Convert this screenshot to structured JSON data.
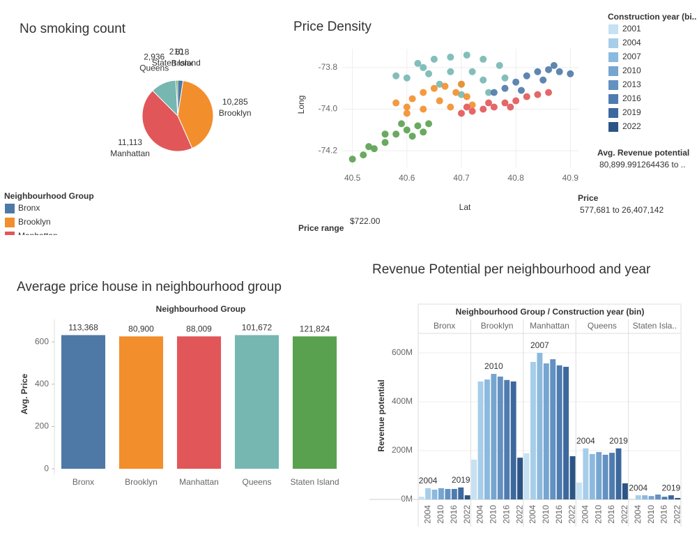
{
  "chart_data": [
    {
      "type": "pie",
      "title": "No smoking count",
      "categories": [
        "Bronx",
        "Brooklyn",
        "Manhattan",
        "Queens",
        "Staten Island"
      ],
      "values": [
        618,
        10285,
        11113,
        2936,
        210
      ],
      "value_labels": [
        "618",
        "10,285",
        "11,113",
        "2,936",
        "210"
      ],
      "colors": [
        "#4e79a7",
        "#f28e2b",
        "#e15759",
        "#76b7b2",
        "#59a14f"
      ],
      "legend_title": "Neighbourhood Group"
    },
    {
      "type": "scatter",
      "title": "Price Density",
      "x_label": "Lat",
      "y_label": "Long",
      "xlim": [
        40.48,
        40.915
      ],
      "ylim": [
        -74.28,
        -73.71
      ],
      "xticks": [
        40.5,
        40.6,
        40.7,
        40.8,
        40.9
      ],
      "yticks": [
        -74.2,
        {
          "value": -74,
          "label": "-74.0"
        },
        -73.8
      ],
      "grid": true,
      "series": [
        {
          "color": "#76b7b2",
          "x": [
            40.62,
            40.65,
            40.68,
            40.71,
            40.74,
            40.77,
            40.72,
            40.68,
            40.64,
            40.6,
            40.66,
            40.7,
            40.74,
            40.78,
            40.75,
            40.7,
            40.63,
            40.58
          ],
          "y": [
            -73.78,
            -73.76,
            -73.75,
            -73.74,
            -73.76,
            -73.79,
            -73.82,
            -73.82,
            -73.83,
            -73.85,
            -73.88,
            -73.88,
            -73.86,
            -73.85,
            -73.92,
            -73.93,
            -73.8,
            -73.84
          ]
        },
        {
          "color": "#4e79a7",
          "x": [
            40.78,
            40.8,
            40.82,
            40.84,
            40.86,
            40.88,
            40.9,
            40.85,
            40.81,
            40.76,
            40.87
          ],
          "y": [
            -73.9,
            -73.87,
            -73.84,
            -73.82,
            -73.81,
            -73.82,
            -73.83,
            -73.86,
            -73.91,
            -73.92,
            -73.79
          ]
        },
        {
          "color": "#f28e2b",
          "x": [
            40.58,
            40.6,
            40.61,
            40.63,
            40.65,
            40.67,
            40.69,
            40.71,
            40.66,
            40.63,
            40.6,
            40.68,
            40.72,
            40.7
          ],
          "y": [
            -73.97,
            -73.99,
            -73.95,
            -73.92,
            -73.9,
            -73.89,
            -73.92,
            -73.94,
            -73.96,
            -74.0,
            -74.02,
            -73.99,
            -73.98,
            -73.88
          ]
        },
        {
          "color": "#e15759",
          "x": [
            40.7,
            40.72,
            40.74,
            40.76,
            40.78,
            40.8,
            40.82,
            40.84,
            40.86,
            40.75,
            40.79,
            40.71
          ],
          "y": [
            -74.02,
            -74.01,
            -74.0,
            -73.99,
            -73.97,
            -73.96,
            -73.94,
            -73.93,
            -73.92,
            -73.97,
            -73.99,
            -73.99
          ]
        },
        {
          "color": "#59a14f",
          "x": [
            40.5,
            40.52,
            40.54,
            40.56,
            40.58,
            40.6,
            40.62,
            40.64,
            40.59,
            40.56,
            40.61,
            40.53,
            40.63
          ],
          "y": [
            -74.24,
            -74.22,
            -74.19,
            -74.16,
            -74.12,
            -74.1,
            -74.08,
            -74.07,
            -74.07,
            -74.12,
            -74.13,
            -74.18,
            -74.11
          ]
        }
      ],
      "filters": [
        {
          "title": "Avg. Revenue potential",
          "value": "80,899.991264436 to .."
        },
        {
          "title": "Price",
          "value": "577,681 to 26,407,142"
        },
        {
          "title": "Price range",
          "value": "$722.00"
        }
      ]
    },
    {
      "type": "bar",
      "title": "Average price house in neighbourhood group",
      "header": "Neighbourhood Group",
      "y_label": "Avg. Price",
      "categories": [
        "Bronx",
        "Brooklyn",
        "Manhattan",
        "Queens",
        "Staten Island"
      ],
      "values": [
        632,
        626,
        626,
        632,
        626
      ],
      "bar_labels": [
        "113,368",
        "80,900",
        "88,009",
        "101,672",
        "121,824"
      ],
      "colors": [
        "#4e79a7",
        "#f28e2b",
        "#e15759",
        "#76b7b2",
        "#59a14f"
      ],
      "ylim": [
        -26,
        706
      ],
      "yticks": [
        0,
        200,
        400,
        600
      ]
    },
    {
      "type": "grouped_bar",
      "title": "Revenue Potential per neighbourhood and year",
      "header": "Neighbourhood Group  /  Construction year (bin)",
      "y_label": "Revenue potential",
      "categories": [
        null,
        "2004",
        null,
        "2010",
        null,
        "2016",
        null,
        "2022"
      ],
      "legend_title": "Construction year (bi...",
      "legend_items": [
        "2001",
        "2004",
        "2007",
        "2010",
        "2013",
        "2016",
        "2019",
        "2022"
      ],
      "colors": [
        "#c6e1f2",
        "#a6cde9",
        "#8cb9de",
        "#76a5d0",
        "#6391c1",
        "#4f7cb0",
        "#3d689d",
        "#2c5585"
      ],
      "ylim": [
        -17,
        674
      ],
      "yticks": [
        {
          "value": 0,
          "label": "0M"
        },
        {
          "value": 200,
          "label": "200M"
        },
        {
          "value": 400,
          "label": "400M"
        },
        {
          "value": 600,
          "label": "600M"
        }
      ],
      "series": [
        {
          "name": "Bronx",
          "values": [
            11,
            46,
            40,
            46,
            43,
            43,
            49,
            17
          ],
          "labels": [
            "2004",
            "2019"
          ]
        },
        {
          "name": "Brooklyn",
          "values": [
            163,
            483,
            491,
            514,
            503,
            489,
            483,
            171
          ],
          "labels": [
            "2010"
          ]
        },
        {
          "name": "Manhattan",
          "values": [
            189,
            563,
            600,
            557,
            574,
            549,
            543,
            177
          ],
          "labels": [
            "2007"
          ]
        },
        {
          "name": "Queens",
          "values": [
            69,
            209,
            186,
            194,
            183,
            191,
            209,
            66
          ],
          "labels": [
            "2004",
            "2019"
          ]
        },
        {
          "name": "Staten Isla..",
          "values": [
            3,
            17,
            17,
            14,
            20,
            11,
            17,
            6
          ],
          "labels": [
            "2004",
            "2019"
          ]
        }
      ]
    }
  ]
}
